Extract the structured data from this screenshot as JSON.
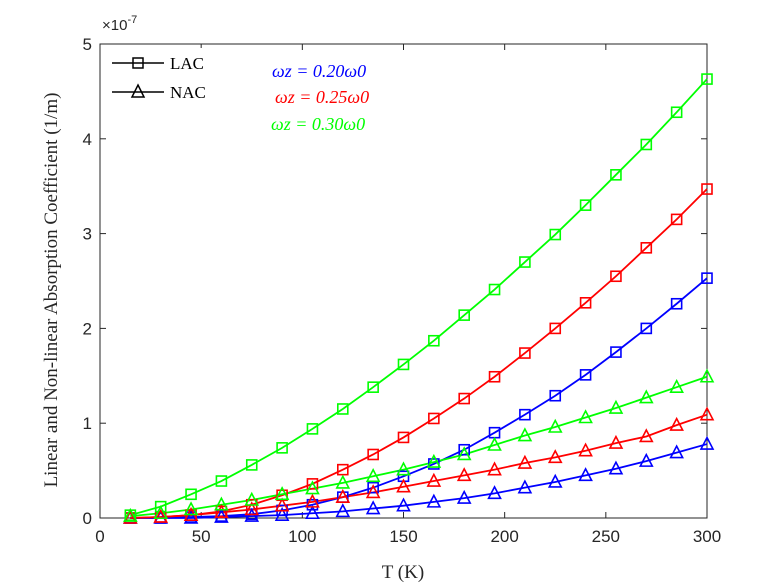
{
  "chart_data": {
    "type": "line",
    "title": "",
    "xlabel": "T (K)",
    "ylabel": "Linear and Non-linear Absorption Coefficient (1/m)",
    "xlim": [
      0,
      300
    ],
    "ylim": [
      0,
      5
    ],
    "y_exponent_label": "×10",
    "y_exponent_power": "-7",
    "x_ticks": [
      0,
      50,
      100,
      150,
      200,
      250,
      300
    ],
    "y_ticks": [
      0,
      1,
      2,
      3,
      4,
      5
    ],
    "grid": false,
    "legend_position": "top-left",
    "legend": [
      {
        "label": "LAC",
        "marker": "square"
      },
      {
        "label": "NAC",
        "marker": "triangle"
      }
    ],
    "annotations": [
      {
        "text": "ωz = 0.20ω0",
        "color": "#0000ff"
      },
      {
        "text": "ωz = 0.25ω0",
        "color": "#ff0000"
      },
      {
        "text": "ωz = 0.30ω0",
        "color": "#00ff00"
      }
    ],
    "x": [
      15,
      30,
      45,
      60,
      75,
      90,
      105,
      120,
      135,
      150,
      165,
      180,
      195,
      210,
      225,
      240,
      255,
      270,
      285,
      300
    ],
    "series": [
      {
        "name": "LAC ωz = 0.20ω0",
        "marker": "square",
        "color": "#0000ff",
        "values": [
          0.0,
          0.0,
          0.01,
          0.02,
          0.04,
          0.08,
          0.14,
          0.22,
          0.32,
          0.44,
          0.57,
          0.72,
          0.9,
          1.09,
          1.29,
          1.51,
          1.75,
          2.0,
          2.26,
          2.53
        ]
      },
      {
        "name": "LAC ωz = 0.25ω0",
        "marker": "square",
        "color": "#ff0000",
        "values": [
          0.0,
          0.01,
          0.03,
          0.07,
          0.14,
          0.24,
          0.36,
          0.51,
          0.67,
          0.85,
          1.05,
          1.26,
          1.49,
          1.74,
          2.0,
          2.27,
          2.55,
          2.85,
          3.15,
          3.47
        ]
      },
      {
        "name": "LAC ωz = 0.30ω0",
        "marker": "square",
        "color": "#00ff00",
        "values": [
          0.03,
          0.12,
          0.25,
          0.39,
          0.56,
          0.74,
          0.94,
          1.15,
          1.38,
          1.62,
          1.87,
          2.14,
          2.41,
          2.7,
          2.99,
          3.3,
          3.62,
          3.94,
          4.28,
          4.63
        ]
      },
      {
        "name": "NAC ωz = 0.20ω0",
        "marker": "triangle",
        "color": "#0000ff",
        "values": [
          0.0,
          0.0,
          0.0,
          0.01,
          0.02,
          0.03,
          0.05,
          0.07,
          0.1,
          0.13,
          0.17,
          0.21,
          0.26,
          0.32,
          0.38,
          0.45,
          0.52,
          0.6,
          0.69,
          0.78
        ]
      },
      {
        "name": "NAC ωz = 0.25ω0",
        "marker": "triangle",
        "color": "#ff0000",
        "values": [
          0.0,
          0.01,
          0.03,
          0.06,
          0.09,
          0.13,
          0.17,
          0.22,
          0.27,
          0.33,
          0.39,
          0.45,
          0.51,
          0.58,
          0.64,
          0.71,
          0.79,
          0.86,
          0.98,
          1.09
        ]
      },
      {
        "name": "NAC ωz = 0.30ω0",
        "marker": "triangle",
        "color": "#00ff00",
        "values": [
          0.02,
          0.05,
          0.09,
          0.14,
          0.19,
          0.25,
          0.31,
          0.37,
          0.44,
          0.51,
          0.59,
          0.67,
          0.77,
          0.87,
          0.96,
          1.06,
          1.16,
          1.27,
          1.38,
          1.49
        ]
      }
    ]
  }
}
